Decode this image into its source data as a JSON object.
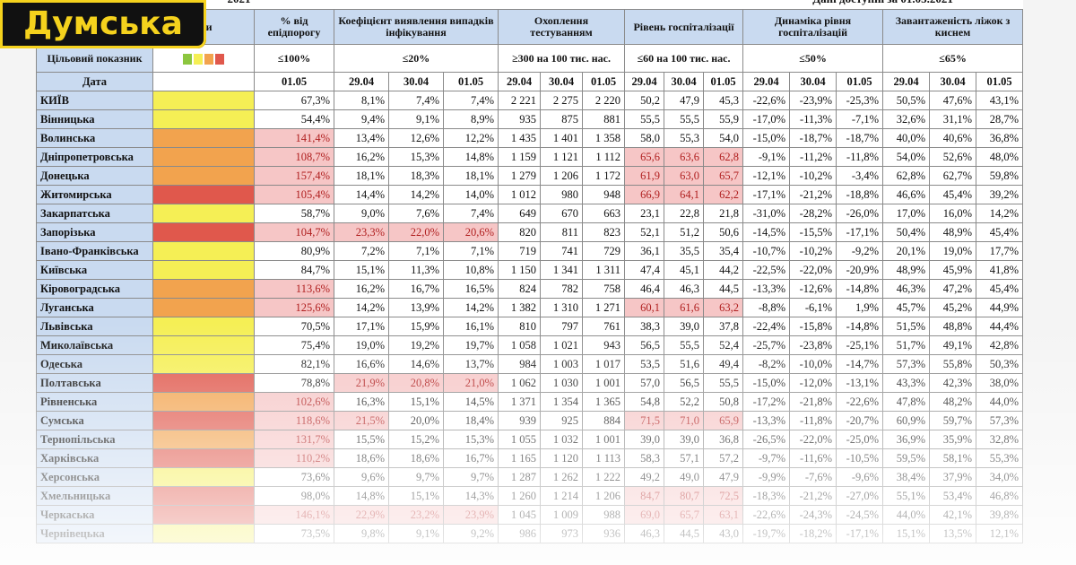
{
  "logo": "Думська",
  "top": {
    "left": "2021",
    "right": "Дані доступні за 01.05.2021"
  },
  "table": {
    "legend_label": "еки",
    "target_label": "Цільовий показник",
    "date_label": "Дата",
    "level_colors": [
      "#8cc63f",
      "#f5ef55",
      "#f2a34e",
      "#e0584c"
    ],
    "groups": [
      {
        "title": "% від епідпорогу",
        "target": "≤100%",
        "dates": [
          "01.05"
        ]
      },
      {
        "title": "Коефіцієнт виявлення випадків інфікування",
        "target": "≤20%",
        "dates": [
          "29.04",
          "30.04",
          "01.05"
        ]
      },
      {
        "title": "Охоплення тестуванням",
        "target": "≥300 на 100 тис. нас.",
        "dates": [
          "29.04",
          "30.04",
          "01.05"
        ]
      },
      {
        "title": "Рівень госпіталізації",
        "target": "≤60 на 100 тис. нас.",
        "dates": [
          "29.04",
          "30.04",
          "01.05"
        ]
      },
      {
        "title": "Динаміка рівня госпіталізацій",
        "target": "≤50%",
        "dates": [
          "29.04",
          "30.04",
          "01.05"
        ]
      },
      {
        "title": "Завантаженість ліжок з киснем",
        "target": "≤65%",
        "dates": [
          "29.04",
          "30.04",
          "01.05"
        ]
      }
    ],
    "rows": [
      {
        "name": "КИЇВ",
        "level": "#f5ef55",
        "cells": [
          "67,3%",
          "8,1%",
          "7,4%",
          "7,4%",
          "2 221",
          "2 275",
          "2 220",
          "50,2",
          "47,9",
          "45,3",
          "-22,6%",
          "-23,9%",
          "-25,3%",
          "50,5%",
          "47,6%",
          "43,1%"
        ],
        "flagged": []
      },
      {
        "name": "Вінницька",
        "level": "#f5ef55",
        "cells": [
          "54,4%",
          "9,4%",
          "9,1%",
          "8,9%",
          "935",
          "875",
          "881",
          "55,5",
          "55,5",
          "55,9",
          "-17,0%",
          "-11,3%",
          "-7,1%",
          "32,6%",
          "31,1%",
          "28,7%"
        ],
        "flagged": []
      },
      {
        "name": "Волинська",
        "level": "#f2a34e",
        "cells": [
          "141,4%",
          "13,4%",
          "12,6%",
          "12,2%",
          "1 435",
          "1 401",
          "1 358",
          "58,0",
          "55,3",
          "54,0",
          "-15,0%",
          "-18,7%",
          "-18,7%",
          "40,0%",
          "40,6%",
          "36,8%"
        ],
        "flagged": [
          0
        ]
      },
      {
        "name": "Дніпропетровська",
        "level": "#f2a34e",
        "cells": [
          "108,7%",
          "16,2%",
          "15,3%",
          "14,8%",
          "1 159",
          "1 121",
          "1 112",
          "65,6",
          "63,6",
          "62,8",
          "-9,1%",
          "-11,2%",
          "-11,8%",
          "54,0%",
          "52,6%",
          "48,0%"
        ],
        "flagged": [
          0,
          7,
          8,
          9
        ]
      },
      {
        "name": "Донецька",
        "level": "#f2a34e",
        "cells": [
          "157,4%",
          "18,1%",
          "18,3%",
          "18,1%",
          "1 279",
          "1 206",
          "1 172",
          "61,9",
          "63,0",
          "65,7",
          "-12,1%",
          "-10,2%",
          "-3,4%",
          "62,8%",
          "62,7%",
          "59,8%"
        ],
        "flagged": [
          0,
          7,
          8,
          9
        ]
      },
      {
        "name": "Житомирська",
        "level": "#e0584c",
        "cells": [
          "105,4%",
          "14,4%",
          "14,2%",
          "14,0%",
          "1 012",
          "980",
          "948",
          "66,9",
          "64,1",
          "62,2",
          "-17,1%",
          "-21,2%",
          "-18,8%",
          "46,6%",
          "45,4%",
          "39,2%"
        ],
        "flagged": [
          0,
          7,
          8,
          9
        ]
      },
      {
        "name": "Закарпатська",
        "level": "#f5ef55",
        "cells": [
          "58,7%",
          "9,0%",
          "7,6%",
          "7,4%",
          "649",
          "670",
          "663",
          "23,1",
          "22,8",
          "21,8",
          "-31,0%",
          "-28,2%",
          "-26,0%",
          "17,0%",
          "16,0%",
          "14,2%"
        ],
        "flagged": []
      },
      {
        "name": "Запорізька",
        "level": "#e0584c",
        "cells": [
          "104,7%",
          "23,3%",
          "22,0%",
          "20,6%",
          "820",
          "811",
          "823",
          "52,1",
          "51,2",
          "50,6",
          "-14,5%",
          "-15,5%",
          "-17,1%",
          "50,4%",
          "48,9%",
          "45,4%"
        ],
        "flagged": [
          0,
          1,
          2,
          3
        ]
      },
      {
        "name": "Івано-Франківська",
        "level": "#f5ef55",
        "cells": [
          "80,9%",
          "7,2%",
          "7,1%",
          "7,1%",
          "719",
          "741",
          "729",
          "36,1",
          "35,5",
          "35,4",
          "-10,7%",
          "-10,2%",
          "-9,2%",
          "20,1%",
          "19,0%",
          "17,7%"
        ],
        "flagged": []
      },
      {
        "name": "Київська",
        "level": "#f5ef55",
        "cells": [
          "84,7%",
          "15,1%",
          "11,3%",
          "10,8%",
          "1 150",
          "1 341",
          "1 311",
          "47,4",
          "45,1",
          "44,2",
          "-22,5%",
          "-22,0%",
          "-20,9%",
          "48,9%",
          "45,9%",
          "41,8%"
        ],
        "flagged": []
      },
      {
        "name": "Кіровоградська",
        "level": "#f2a34e",
        "cells": [
          "113,6%",
          "16,2%",
          "16,7%",
          "16,5%",
          "824",
          "782",
          "758",
          "46,4",
          "46,3",
          "44,5",
          "-13,3%",
          "-12,6%",
          "-14,8%",
          "46,3%",
          "47,2%",
          "45,4%"
        ],
        "flagged": [
          0
        ]
      },
      {
        "name": "Луганська",
        "level": "#f2a34e",
        "cells": [
          "125,6%",
          "14,2%",
          "13,9%",
          "14,2%",
          "1 382",
          "1 310",
          "1 271",
          "60,1",
          "61,6",
          "63,2",
          "-8,8%",
          "-6,1%",
          "1,9%",
          "45,7%",
          "45,2%",
          "44,9%"
        ],
        "flagged": [
          0,
          7,
          8,
          9
        ]
      },
      {
        "name": "Львівська",
        "level": "#f5ef55",
        "cells": [
          "70,5%",
          "17,1%",
          "15,9%",
          "16,1%",
          "810",
          "797",
          "761",
          "38,3",
          "39,0",
          "37,8",
          "-22,4%",
          "-15,8%",
          "-14,8%",
          "51,5%",
          "48,8%",
          "44,4%"
        ],
        "flagged": []
      },
      {
        "name": "Миколаївська",
        "level": "#f5ef55",
        "cells": [
          "75,4%",
          "19,0%",
          "19,2%",
          "19,7%",
          "1 058",
          "1 021",
          "943",
          "56,5",
          "55,5",
          "52,4",
          "-25,7%",
          "-23,8%",
          "-25,1%",
          "51,7%",
          "49,1%",
          "42,8%"
        ],
        "flagged": []
      },
      {
        "name": "Одеська",
        "level": "#f5ef55",
        "cells": [
          "82,1%",
          "16,6%",
          "14,6%",
          "13,7%",
          "984",
          "1 003",
          "1 017",
          "53,5",
          "51,6",
          "49,4",
          "-8,2%",
          "-10,0%",
          "-14,7%",
          "57,3%",
          "55,8%",
          "50,3%"
        ],
        "flagged": []
      },
      {
        "name": "Полтавська",
        "level": "#e0584c",
        "cells": [
          "78,8%",
          "21,9%",
          "20,8%",
          "21,0%",
          "1 062",
          "1 030",
          "1 001",
          "57,0",
          "56,5",
          "55,5",
          "-15,0%",
          "-12,0%",
          "-13,1%",
          "43,3%",
          "42,3%",
          "38,0%"
        ],
        "flagged": [
          1,
          2,
          3
        ]
      },
      {
        "name": "Рівненська",
        "level": "#f2a34e",
        "cells": [
          "102,6%",
          "16,3%",
          "15,1%",
          "14,5%",
          "1 371",
          "1 354",
          "1 365",
          "54,8",
          "52,2",
          "50,8",
          "-17,2%",
          "-21,8%",
          "-22,6%",
          "47,8%",
          "48,2%",
          "44,0%"
        ],
        "flagged": [
          0
        ]
      },
      {
        "name": "Сумська",
        "level": "#e0584c",
        "cells": [
          "118,6%",
          "21,5%",
          "20,0%",
          "18,4%",
          "939",
          "925",
          "884",
          "71,5",
          "71,0",
          "65,9",
          "-13,3%",
          "-11,8%",
          "-20,7%",
          "60,9%",
          "59,7%",
          "57,3%"
        ],
        "flagged": [
          0,
          1,
          7,
          8,
          9
        ]
      },
      {
        "name": "Тернопільська",
        "level": "#f2a34e",
        "cells": [
          "131,7%",
          "15,5%",
          "15,2%",
          "15,3%",
          "1 055",
          "1 032",
          "1 001",
          "39,0",
          "39,0",
          "36,8",
          "-26,5%",
          "-22,0%",
          "-25,0%",
          "36,9%",
          "35,9%",
          "32,8%"
        ],
        "flagged": [
          0
        ]
      },
      {
        "name": "Харківська",
        "level": "#e0584c",
        "cells": [
          "110,2%",
          "18,6%",
          "18,6%",
          "16,7%",
          "1 165",
          "1 120",
          "1 113",
          "58,3",
          "57,1",
          "57,2",
          "-9,7%",
          "-11,6%",
          "-10,5%",
          "59,5%",
          "58,1%",
          "55,3%"
        ],
        "flagged": [
          0
        ]
      },
      {
        "name": "Херсонська",
        "level": "#f5ef55",
        "cells": [
          "73,6%",
          "9,6%",
          "9,7%",
          "9,7%",
          "1 287",
          "1 262",
          "1 222",
          "49,2",
          "49,0",
          "47,9",
          "-9,9%",
          "-7,6%",
          "-9,6%",
          "38,4%",
          "37,9%",
          "34,0%"
        ],
        "flagged": []
      },
      {
        "name": "Хмельницька",
        "level": "#e0584c",
        "cells": [
          "98,0%",
          "14,8%",
          "15,1%",
          "14,3%",
          "1 260",
          "1 214",
          "1 206",
          "84,7",
          "80,7",
          "72,5",
          "-18,3%",
          "-21,2%",
          "-27,0%",
          "55,1%",
          "53,4%",
          "46,8%"
        ],
        "flagged": [
          7,
          8,
          9
        ]
      },
      {
        "name": "Черкаська",
        "level": "#e0584c",
        "cells": [
          "146,1%",
          "22,9%",
          "23,2%",
          "23,9%",
          "1 045",
          "1 009",
          "988",
          "69,0",
          "65,7",
          "63,1",
          "-22,6%",
          "-24,3%",
          "-24,5%",
          "44,0%",
          "42,1%",
          "39,8%"
        ],
        "flagged": [
          0,
          1,
          2,
          3,
          7,
          8,
          9
        ]
      },
      {
        "name": "Чернівецька",
        "level": "#f5ef55",
        "cells": [
          "73,5%",
          "9,8%",
          "9,1%",
          "9,2%",
          "986",
          "973",
          "936",
          "46,3",
          "44,5",
          "43,0",
          "-19,7%",
          "-18,2%",
          "-17,1%",
          "15,1%",
          "13,5%",
          "12,1%"
        ],
        "flagged": []
      }
    ]
  }
}
